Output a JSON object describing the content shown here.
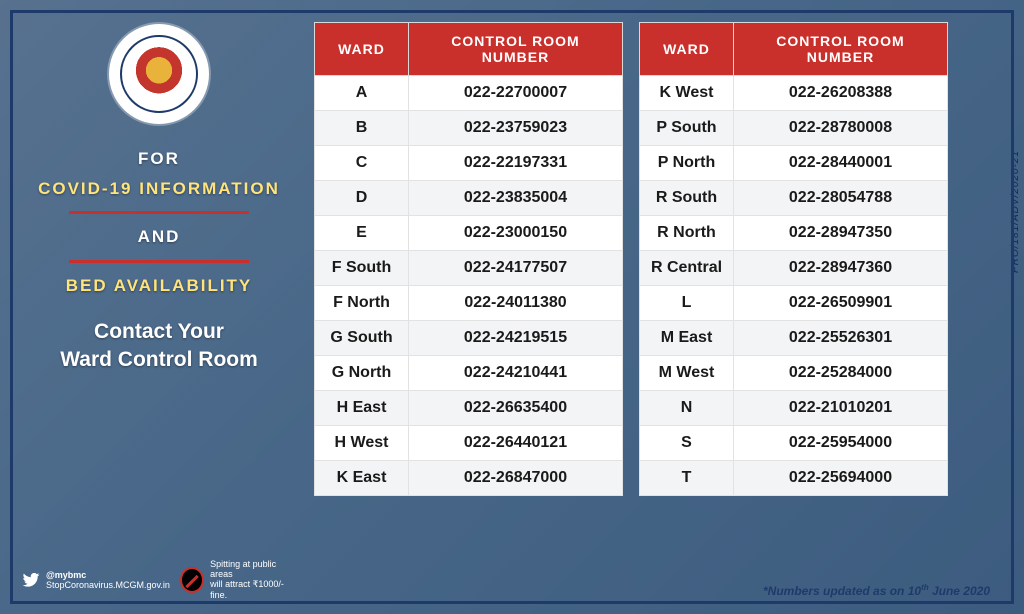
{
  "colors": {
    "header_bg": "#c9302c",
    "header_text": "#ffffff",
    "row_bg": "#ffffff",
    "row_alt_bg": "#f3f4f5",
    "border": "#e2e2e2",
    "frame": "#1e3a6b",
    "highlight": "#fee47b"
  },
  "left": {
    "line1": "FOR",
    "line2": "COVID-19 INFORMATION",
    "line3": "AND",
    "line4": "BED AVAILABILITY",
    "sub1": "Contact Your",
    "sub2": "Ward Control Room",
    "twitter_handle": "@mybmc",
    "twitter_site": "StopCoronavirus.MCGM.gov.in",
    "spit_line1": "Spitting at public areas",
    "spit_line2": "will attract ₹1000/- fine."
  },
  "table": {
    "headers": {
      "ward": "WARD",
      "number": "CONTROL ROOM NUMBER"
    },
    "left_rows": [
      {
        "ward": "A",
        "num": "022-22700007"
      },
      {
        "ward": "B",
        "num": "022-23759023"
      },
      {
        "ward": "C",
        "num": "022-22197331"
      },
      {
        "ward": "D",
        "num": "022-23835004"
      },
      {
        "ward": "E",
        "num": "022-23000150"
      },
      {
        "ward": "F South",
        "num": "022-24177507"
      },
      {
        "ward": "F North",
        "num": "022-24011380"
      },
      {
        "ward": "G South",
        "num": "022-24219515"
      },
      {
        "ward": "G North",
        "num": "022-24210441"
      },
      {
        "ward": "H East",
        "num": "022-26635400"
      },
      {
        "ward": "H West",
        "num": "022-26440121"
      },
      {
        "ward": "K East",
        "num": "022-26847000"
      }
    ],
    "right_rows": [
      {
        "ward": "K West",
        "num": "022-26208388"
      },
      {
        "ward": "P South",
        "num": "022-28780008"
      },
      {
        "ward": "P North",
        "num": "022-28440001"
      },
      {
        "ward": "R South",
        "num": "022-28054788"
      },
      {
        "ward": "R North",
        "num": "022-28947350"
      },
      {
        "ward": "R Central",
        "num": "022-28947360"
      },
      {
        "ward": "L",
        "num": "022-26509901"
      },
      {
        "ward": "M East",
        "num": "022-25526301"
      },
      {
        "ward": "M West",
        "num": "022-25284000"
      },
      {
        "ward": "N",
        "num": "022-21010201"
      },
      {
        "ward": "S",
        "num": "022-25954000"
      },
      {
        "ward": "T",
        "num": "022-25694000"
      }
    ]
  },
  "sidetext": "PRO/181/ADV/2020-21",
  "updated_prefix": "*Numbers updated as on 10",
  "updated_suffix": " June 2020",
  "updated_sup": "th"
}
